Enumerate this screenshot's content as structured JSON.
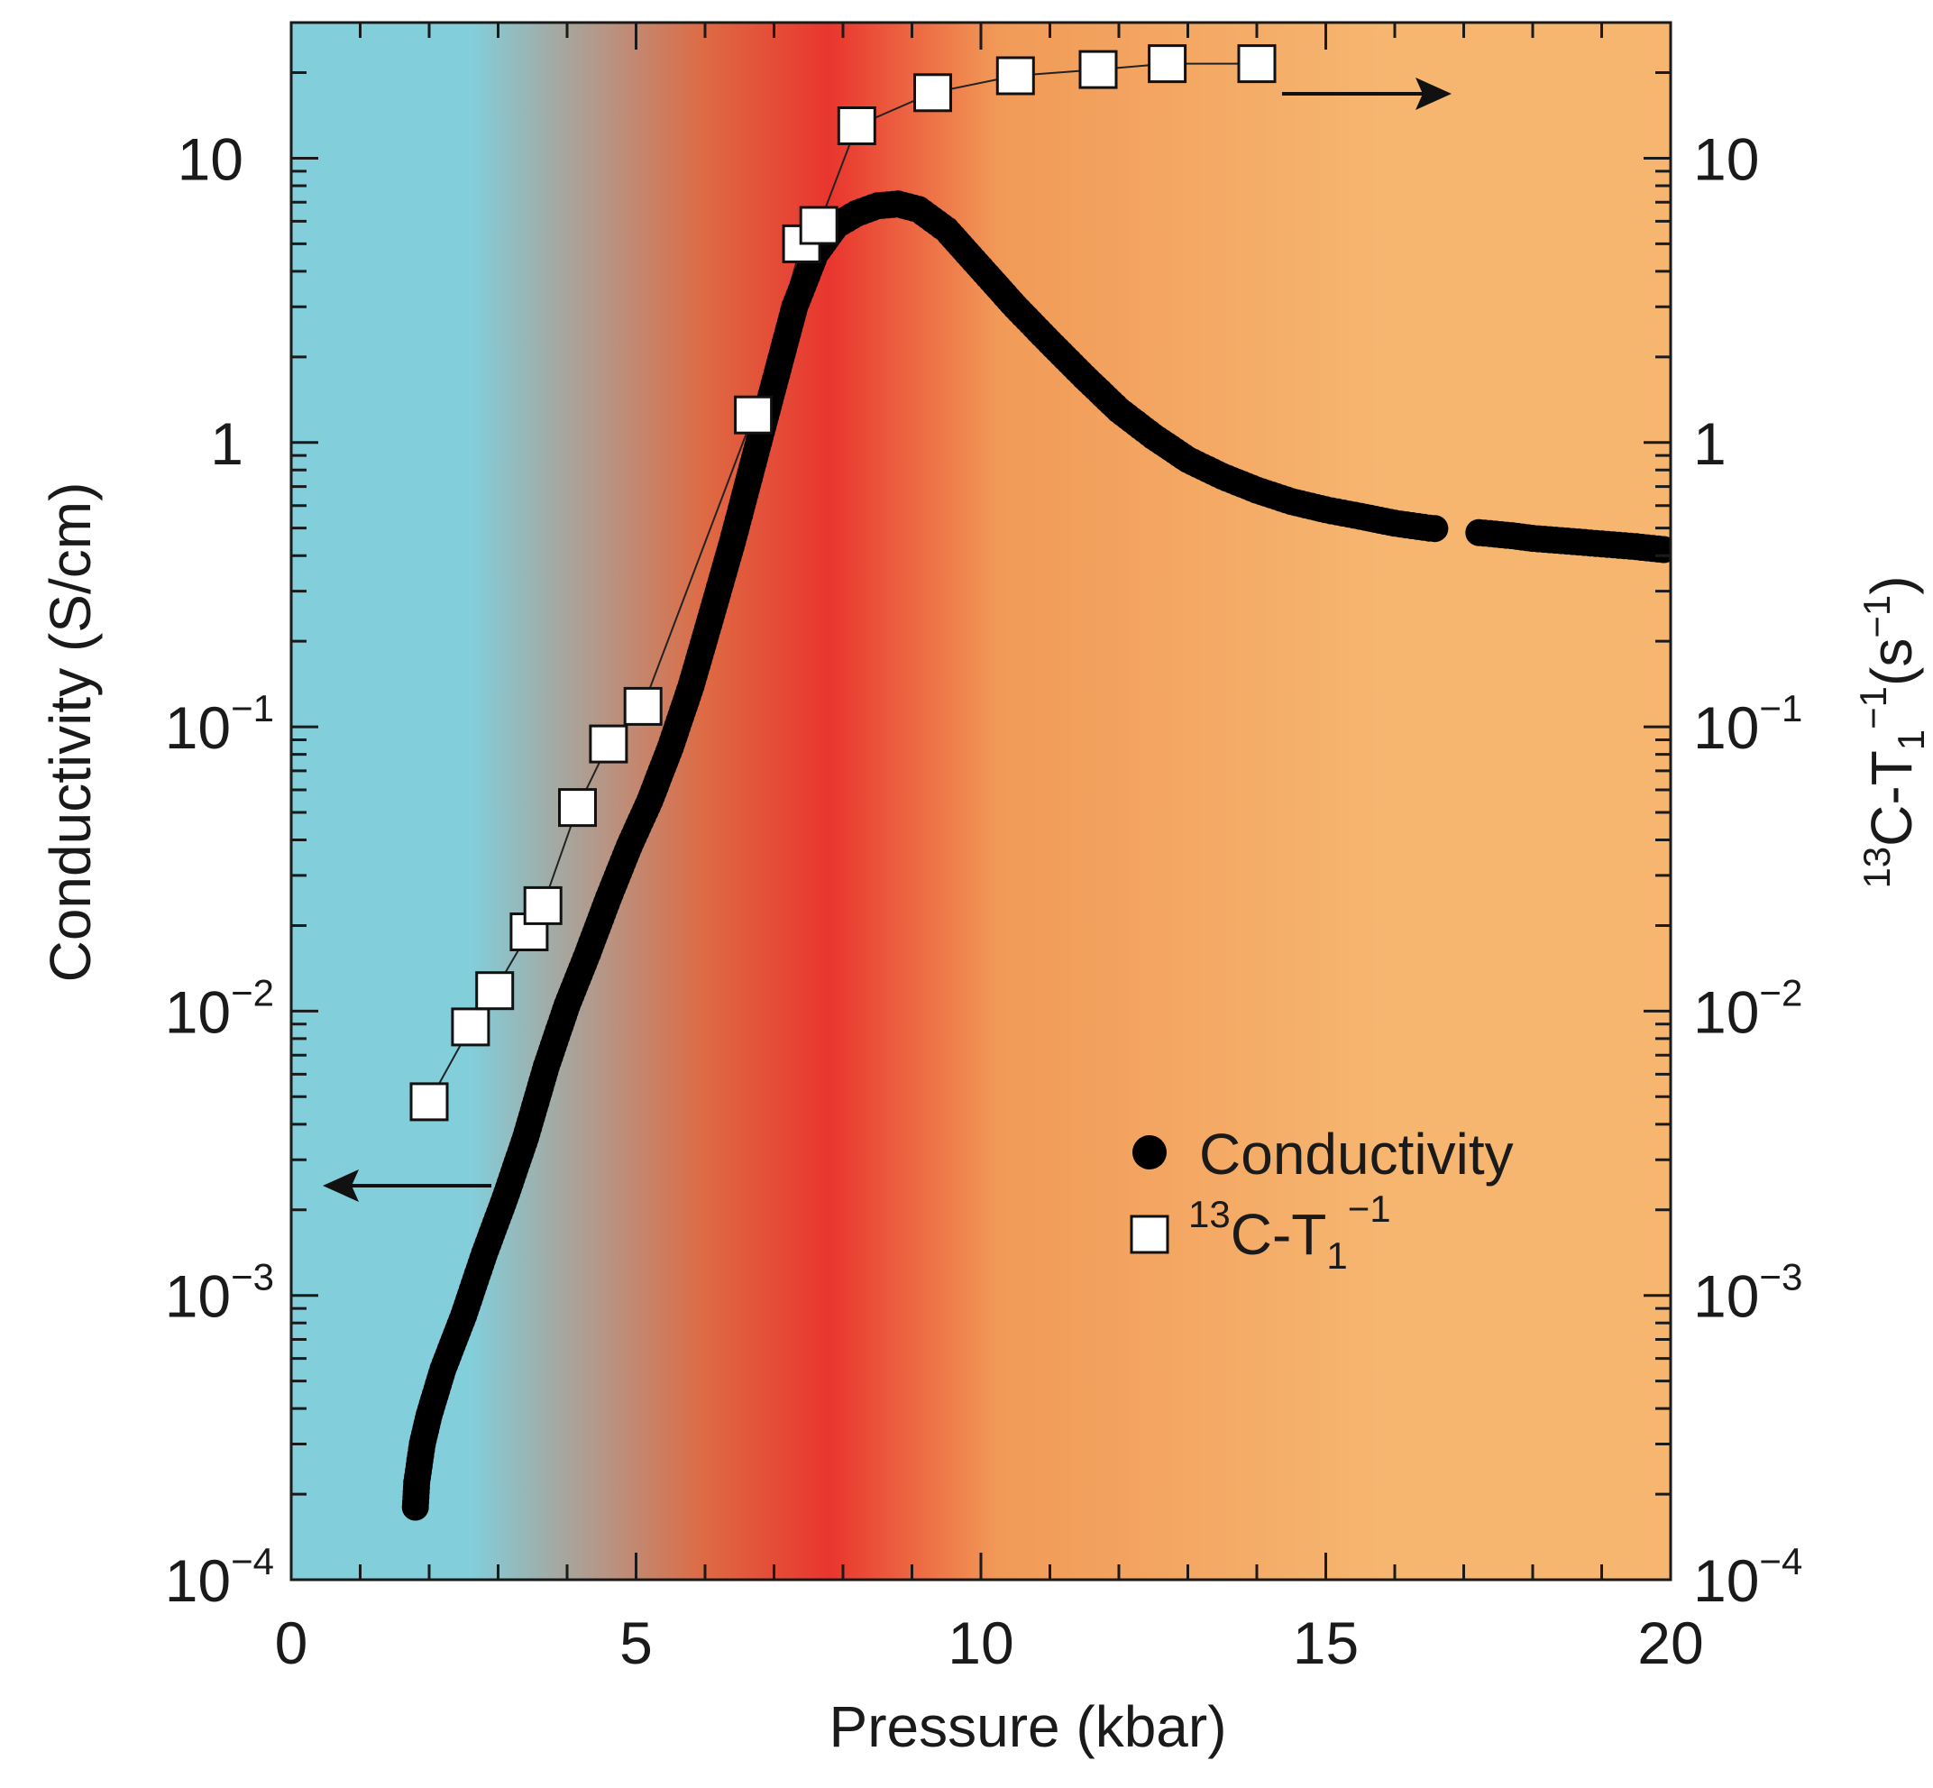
{
  "chart_data": {
    "type": "scatter",
    "title": "",
    "xlabel": "Pressure (kbar)",
    "ylabel_left": "Conductivity (S/cm)",
    "ylabel_right": {
      "base": "C-T",
      "sup_mass": "13",
      "sub": "1",
      "sup_pow": "−1",
      "unit": "(s",
      "unit_sup": "−1",
      "unit_close": ")"
    },
    "xlim": [
      0,
      20
    ],
    "ylim": [
      0.0001,
      30
    ],
    "yscale": "log",
    "x_ticks": [
      "0",
      "5",
      "10",
      "15",
      "20"
    ],
    "y_ticks": [
      {
        "base": "10",
        "exp": "−4"
      },
      {
        "base": "10",
        "exp": "−3"
      },
      {
        "base": "10",
        "exp": "−2"
      },
      {
        "base": "10",
        "exp": "−1"
      },
      {
        "base": "1",
        "exp": ""
      },
      {
        "base": "10",
        "exp": ""
      }
    ],
    "background_regions": [
      {
        "from": 0,
        "to": 5.2,
        "color": "#82cedb"
      },
      {
        "from": 5.2,
        "to": 6.8,
        "color": "#de6a43"
      },
      {
        "from": 6.8,
        "to": 8.8,
        "color": "#e9352e"
      },
      {
        "from": 8.8,
        "to": 11.7,
        "color": "#f19a57"
      },
      {
        "from": 11.7,
        "to": 20,
        "color": "#f6b670"
      }
    ],
    "series": [
      {
        "name": "Conductivity",
        "marker": "filled-circle",
        "axis": "left",
        "points": [
          [
            1.8,
            0.00018
          ],
          [
            1.82,
            0.00022
          ],
          [
            1.9,
            0.0003
          ],
          [
            2.0,
            0.00038
          ],
          [
            2.2,
            0.00055
          ],
          [
            2.5,
            0.00085
          ],
          [
            2.8,
            0.0014
          ],
          [
            3.1,
            0.0022
          ],
          [
            3.4,
            0.0036
          ],
          [
            3.7,
            0.0064
          ],
          [
            4.0,
            0.0105
          ],
          [
            4.3,
            0.016
          ],
          [
            4.6,
            0.025
          ],
          [
            4.9,
            0.038
          ],
          [
            5.2,
            0.055
          ],
          [
            5.5,
            0.085
          ],
          [
            5.8,
            0.14
          ],
          [
            6.1,
            0.25
          ],
          [
            6.4,
            0.45
          ],
          [
            6.7,
            0.85
          ],
          [
            7.0,
            1.6
          ],
          [
            7.3,
            3.0
          ],
          [
            7.6,
            4.6
          ],
          [
            7.9,
            5.8
          ],
          [
            8.2,
            6.4
          ],
          [
            8.5,
            6.8
          ],
          [
            8.8,
            6.9
          ],
          [
            9.1,
            6.6
          ],
          [
            9.5,
            5.6
          ],
          [
            10.0,
            4.1
          ],
          [
            10.5,
            3.0
          ],
          [
            11.0,
            2.25
          ],
          [
            11.5,
            1.7
          ],
          [
            12.0,
            1.3
          ],
          [
            12.5,
            1.05
          ],
          [
            13.0,
            0.87
          ],
          [
            13.5,
            0.76
          ],
          [
            14.0,
            0.68
          ],
          [
            14.5,
            0.62
          ],
          [
            15.0,
            0.58
          ],
          [
            15.5,
            0.55
          ],
          [
            16.0,
            0.52
          ],
          [
            16.5,
            0.5
          ],
          [
            17.3,
            0.48
          ],
          [
            17.7,
            0.47
          ],
          [
            18.0,
            0.46
          ],
          [
            18.5,
            0.45
          ],
          [
            19.0,
            0.44
          ],
          [
            19.5,
            0.43
          ],
          [
            19.9,
            0.42
          ]
        ]
      },
      {
        "name": "C-T",
        "name_sup": "13",
        "name_sub": "1",
        "name_pow": "−1",
        "marker": "open-square",
        "axis": "right",
        "line": true,
        "points": [
          [
            2.0,
            0.0048
          ],
          [
            2.6,
            0.0088
          ],
          [
            2.95,
            0.0118
          ],
          [
            3.45,
            0.019
          ],
          [
            3.65,
            0.0235
          ],
          [
            4.15,
            0.052
          ],
          [
            4.6,
            0.087
          ],
          [
            5.1,
            0.118
          ],
          [
            6.7,
            1.25
          ],
          [
            7.4,
            5.0
          ],
          [
            7.65,
            5.8
          ],
          [
            8.2,
            13.0
          ],
          [
            9.3,
            17.0
          ],
          [
            10.5,
            19.5
          ],
          [
            11.7,
            20.5
          ],
          [
            12.7,
            21.5
          ],
          [
            14.0,
            21.5
          ]
        ]
      }
    ],
    "annotations": [
      {
        "type": "arrow",
        "direction": "left",
        "meaning": "conductivity uses left axis"
      },
      {
        "type": "arrow",
        "direction": "right",
        "meaning": "13C-T1^-1 uses right axis"
      }
    ],
    "legend": {
      "position": "lower-right",
      "entries": [
        "Conductivity",
        "13C-T1^-1"
      ]
    },
    "colors": {
      "axis": "#1a1a1a",
      "marker_fill_open": "#ffffff",
      "marker_fill_solid": "#000000"
    }
  }
}
